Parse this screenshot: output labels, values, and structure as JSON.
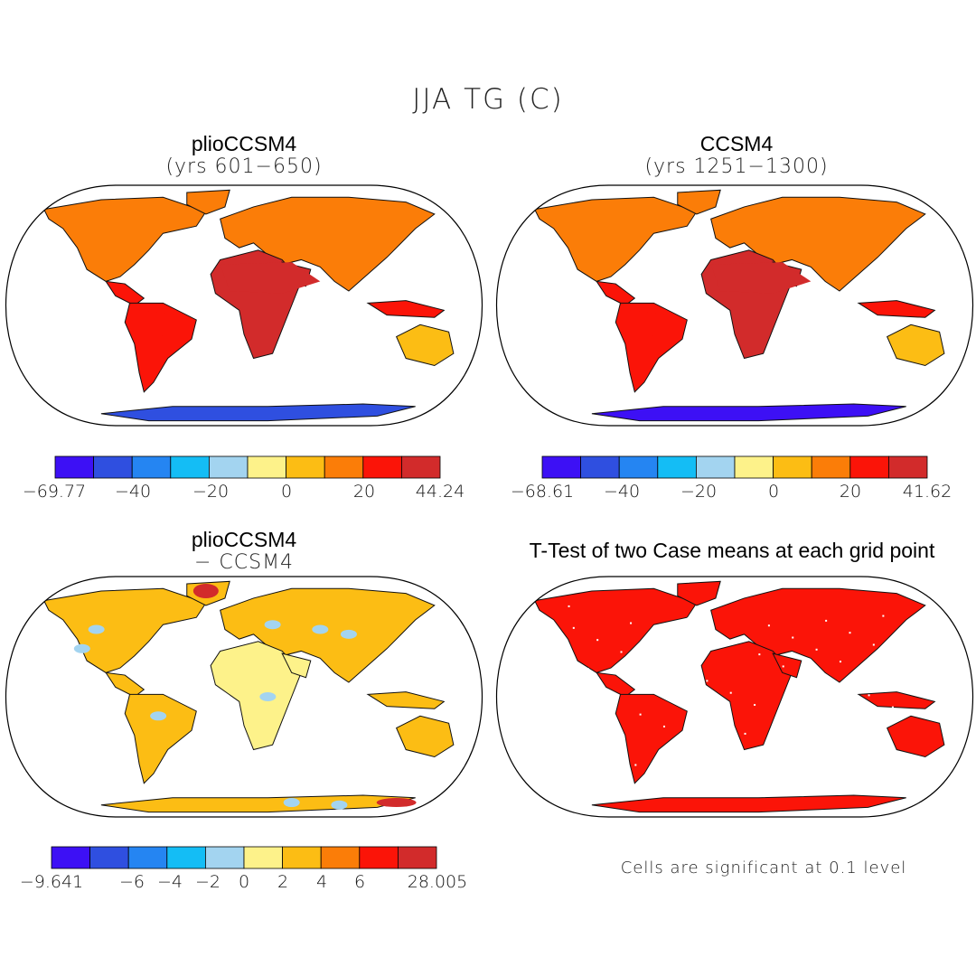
{
  "title": "JJA TG (C)",
  "panels": [
    {
      "title": "plioCCSM4",
      "subtitle": "(yrs 601−650)",
      "scheme": "plio"
    },
    {
      "title": "CCSM4",
      "subtitle": "(yrs 1251−1300)",
      "scheme": "ccsm"
    },
    {
      "title": "plioCCSM4",
      "subtitle": "− CCSM4",
      "scheme": "diff"
    },
    {
      "title": "T-Test of two Case means at each grid point",
      "subtitle": "",
      "scheme": "ttest"
    }
  ],
  "colorbars": [
    {
      "labels": [
        "−69.77",
        "−40",
        "−20",
        "0",
        "20",
        "44.24"
      ]
    },
    {
      "labels": [
        "−68.61",
        "−40",
        "−20",
        "0",
        "20",
        "41.62"
      ]
    },
    {
      "labels": [
        "−9.641",
        "−6",
        "−4",
        "−2",
        "0",
        "2",
        "4",
        "6",
        "28.005"
      ]
    }
  ],
  "palette": [
    "#3d10f5",
    "#2f4fe0",
    "#2585f2",
    "#14bdf5",
    "#a3d4f0",
    "#fdf28a",
    "#fcbd14",
    "#fb7d08",
    "#fb1408",
    "#d22b2b"
  ],
  "land_colors": {
    "plio": {
      "north": "#fb7d08",
      "tropics": "#d22b2b",
      "mid": "#fb1408",
      "south": "#fcbd14",
      "ice": "#2f4fe0"
    },
    "ccsm": {
      "north": "#fb7d08",
      "tropics": "#d22b2b",
      "mid": "#fb1408",
      "south": "#fcbd14",
      "ice": "#3d10f5"
    },
    "diff": {
      "north": "#fcbd14",
      "tropics": "#fdf28a",
      "mid": "#fcbd14",
      "south": "#fcbd14",
      "ice": "#fcbd14"
    },
    "ttest": {
      "north": "#fb1408",
      "tropics": "#fb1408",
      "mid": "#fb1408",
      "south": "#fb1408",
      "ice": "#fb1408"
    }
  },
  "note": "Cells are significant at 0.1 level"
}
